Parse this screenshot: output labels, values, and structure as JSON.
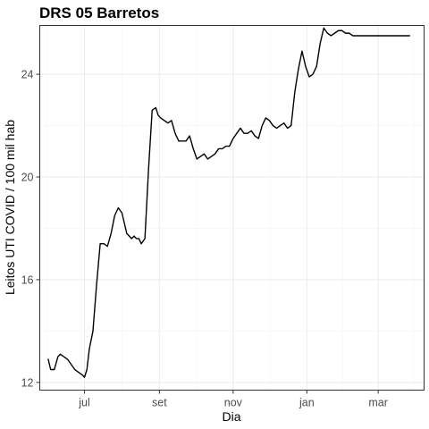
{
  "chart_data": {
    "type": "line",
    "title": "DRS 05 Barretos",
    "xlabel": "Dia",
    "ylabel": "Leitos UTI COVID / 100 mil hab",
    "x_ticks": [
      {
        "label": "jul",
        "date": "2020-07-01"
      },
      {
        "label": "set",
        "date": "2020-09-01"
      },
      {
        "label": "nov",
        "date": "2020-11-01"
      },
      {
        "label": "jan",
        "date": "2021-01-01"
      },
      {
        "label": "mar",
        "date": "2021-03-01"
      }
    ],
    "y_ticks": [
      12,
      16,
      20,
      24
    ],
    "xlim": [
      "2020-05-25",
      "2021-04-08"
    ],
    "ylim": [
      11.7,
      25.9
    ],
    "grid": true,
    "line_color": "#000000",
    "series": [
      {
        "x": [
          "2020-06-01",
          "2020-06-03",
          "2020-06-06",
          "2020-06-09",
          "2020-06-11",
          "2020-06-14",
          "2020-06-17",
          "2020-06-20",
          "2020-06-23",
          "2020-06-26",
          "2020-06-29",
          "2020-07-01",
          "2020-07-03",
          "2020-07-05",
          "2020-07-08",
          "2020-07-11",
          "2020-07-14",
          "2020-07-17",
          "2020-07-20",
          "2020-07-23",
          "2020-07-26",
          "2020-07-29",
          "2020-08-01",
          "2020-08-03",
          "2020-08-05",
          "2020-08-07",
          "2020-08-09",
          "2020-08-11",
          "2020-08-13",
          "2020-08-15",
          "2020-08-17",
          "2020-08-20",
          "2020-08-23",
          "2020-08-26",
          "2020-08-29",
          "2020-08-31",
          "2020-09-02",
          "2020-09-05",
          "2020-09-08",
          "2020-09-11",
          "2020-09-14",
          "2020-09-17",
          "2020-09-20",
          "2020-09-23",
          "2020-09-26",
          "2020-09-29",
          "2020-10-02",
          "2020-10-05",
          "2020-10-08",
          "2020-10-11",
          "2020-10-14",
          "2020-10-17",
          "2020-10-20",
          "2020-10-23",
          "2020-10-26",
          "2020-10-29",
          "2020-11-01",
          "2020-11-04",
          "2020-11-07",
          "2020-11-10",
          "2020-11-13",
          "2020-11-16",
          "2020-11-19",
          "2020-11-22",
          "2020-11-25",
          "2020-11-28",
          "2020-12-01",
          "2020-12-04",
          "2020-12-07",
          "2020-12-10",
          "2020-12-13",
          "2020-12-16",
          "2020-12-19",
          "2020-12-22",
          "2020-12-25",
          "2020-12-28",
          "2020-12-31",
          "2021-01-03",
          "2021-01-06",
          "2021-01-09",
          "2021-01-12",
          "2021-01-15",
          "2021-01-18",
          "2021-01-21",
          "2021-01-24",
          "2021-01-27",
          "2021-01-30",
          "2021-02-02",
          "2021-02-05",
          "2021-02-08",
          "2021-02-11",
          "2021-02-14",
          "2021-02-17",
          "2021-02-20",
          "2021-02-23",
          "2021-02-26",
          "2021-03-01",
          "2021-03-04",
          "2021-03-07",
          "2021-03-10",
          "2021-03-13",
          "2021-03-16",
          "2021-03-19",
          "2021-03-22",
          "2021-03-24",
          "2021-03-26",
          "2021-03-27"
        ],
        "values": [
          12.9,
          12.5,
          12.5,
          13.0,
          13.1,
          13.0,
          12.9,
          12.7,
          12.5,
          12.4,
          12.3,
          12.2,
          12.5,
          13.3,
          14.0,
          15.8,
          17.4,
          17.4,
          17.3,
          17.8,
          18.5,
          18.8,
          18.6,
          18.2,
          17.8,
          17.7,
          17.6,
          17.7,
          17.6,
          17.6,
          17.4,
          17.6,
          20.3,
          22.6,
          22.7,
          22.4,
          22.3,
          22.2,
          22.1,
          22.2,
          21.7,
          21.4,
          21.4,
          21.4,
          21.6,
          21.1,
          20.7,
          20.8,
          20.9,
          20.7,
          20.8,
          20.9,
          21.1,
          21.1,
          21.2,
          21.2,
          21.5,
          21.7,
          21.9,
          21.7,
          21.7,
          21.8,
          21.6,
          21.5,
          22.0,
          22.3,
          22.2,
          22.0,
          21.9,
          22.0,
          22.1,
          21.9,
          22.0,
          23.3,
          24.2,
          24.9,
          24.3,
          23.9,
          24.0,
          24.3,
          25.2,
          25.8,
          25.6,
          25.5,
          25.6,
          25.7,
          25.7,
          25.6,
          25.6,
          25.5,
          25.5,
          25.5,
          25.5,
          25.5,
          25.5,
          25.5,
          25.5,
          25.5,
          25.5,
          25.5,
          25.5,
          25.5,
          25.5,
          25.5,
          25.5,
          25.5,
          25.5
        ]
      }
    ]
  }
}
